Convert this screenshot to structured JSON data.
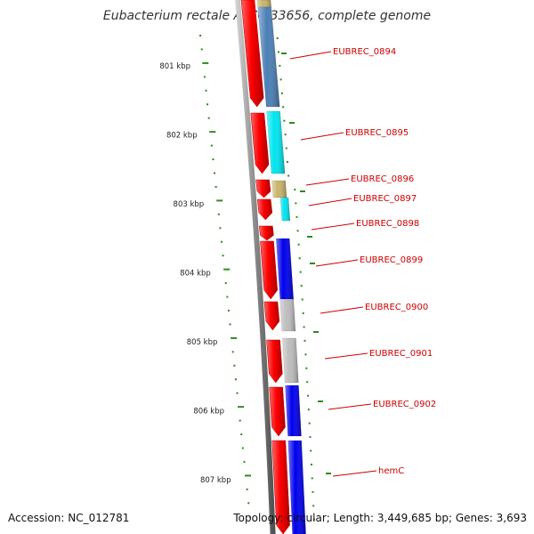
{
  "title": "Eubacterium rectale ATCC 33656, complete genome",
  "accession": "Accession: NC_012781",
  "topology": "Topology: circular; Length: 3,449,685 bp; Genes: 3,693",
  "colors": {
    "forward_strand": "#ff0000",
    "tick": "#2e8b1f",
    "label": "#cc0000",
    "backbone": "#8a8a8a"
  },
  "ticks": [
    "801 kbp",
    "802 kbp",
    "803 kbp",
    "804 kbp",
    "805 kbp",
    "806 kbp",
    "807 kbp"
  ],
  "genes": [
    {
      "name": "",
      "color": "#c8b46a"
    },
    {
      "name": "EUBREC_0894",
      "color": "#4a7fb5"
    },
    {
      "name": "EUBREC_0895",
      "color": "#00e5f0"
    },
    {
      "name": "EUBREC_0896",
      "color": "#c8b46a"
    },
    {
      "name": "EUBREC_0897",
      "color": "#00e5f0"
    },
    {
      "name": "EUBREC_0898",
      "color": "#ff0000"
    },
    {
      "name": "EUBREC_0899",
      "color": "#0000ee"
    },
    {
      "name": "EUBREC_0900",
      "color": "#bdbdbd"
    },
    {
      "name": "EUBREC_0901",
      "color": "#bdbdbd"
    },
    {
      "name": "EUBREC_0902",
      "color": "#0000ee"
    },
    {
      "name": "hemC",
      "color": "#0000ee"
    },
    {
      "name": "",
      "color": "#0000ee"
    }
  ]
}
